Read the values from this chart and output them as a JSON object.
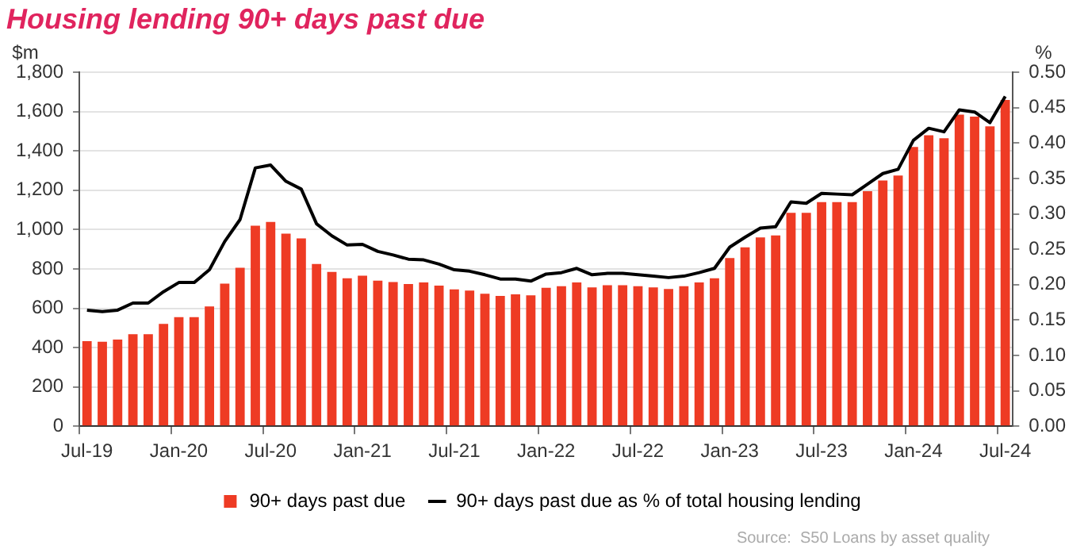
{
  "chart_data": {
    "type": "bar",
    "title": "Housing lending 90+ days past due",
    "ylabel": "$m",
    "y2label": "%",
    "categories": [
      "Jul-19",
      null,
      null,
      null,
      null,
      null,
      "Jan-20",
      null,
      null,
      null,
      null,
      null,
      "Jul-20",
      null,
      null,
      null,
      null,
      null,
      "Jan-21",
      null,
      null,
      null,
      null,
      null,
      "Jul-21",
      null,
      null,
      null,
      null,
      null,
      "Jan-22",
      null,
      null,
      null,
      null,
      null,
      "Jul-22",
      null,
      null,
      null,
      null,
      null,
      "Jan-23",
      null,
      null,
      null,
      null,
      null,
      "Jul-23",
      null,
      null,
      null,
      null,
      null,
      "Jan-24",
      null,
      null,
      null,
      null,
      null,
      "Jul-24"
    ],
    "series": [
      {
        "name": "90+ days past due",
        "color": "#ee3b24",
        "values": [
          433,
          430,
          441,
          468,
          468,
          520,
          555,
          555,
          609,
          725,
          806,
          1020,
          1039,
          980,
          955,
          825,
          785,
          752,
          766,
          740,
          733,
          723,
          731,
          715,
          696,
          690,
          674,
          663,
          671,
          666,
          704,
          712,
          731,
          706,
          717,
          717,
          712,
          706,
          698,
          712,
          731,
          752,
          855,
          910,
          960,
          970,
          1085,
          1085,
          1140,
          1140,
          1140,
          1195,
          1250,
          1275,
          1420,
          1480,
          1465,
          1585,
          1575,
          1525,
          1660
        ]
      },
      {
        "name": "90+ days past due as % of total housing lending",
        "type": "line",
        "axis": "y2",
        "color": "#000000",
        "values": [
          0.164,
          0.162,
          0.164,
          0.174,
          0.174,
          0.19,
          0.203,
          0.203,
          0.221,
          0.261,
          0.292,
          0.365,
          0.369,
          0.346,
          0.335,
          0.286,
          0.269,
          0.256,
          0.257,
          0.247,
          0.242,
          0.236,
          0.235,
          0.229,
          0.221,
          0.219,
          0.214,
          0.208,
          0.208,
          0.205,
          0.215,
          0.217,
          0.223,
          0.214,
          0.216,
          0.216,
          0.214,
          0.212,
          0.21,
          0.212,
          0.217,
          0.223,
          0.253,
          0.267,
          0.28,
          0.282,
          0.317,
          0.315,
          0.329,
          0.328,
          0.327,
          0.342,
          0.357,
          0.363,
          0.404,
          0.421,
          0.416,
          0.447,
          0.444,
          0.429,
          0.466
        ]
      }
    ],
    "ylim": [
      0,
      1800
    ],
    "yticks": [
      {
        "value": 0,
        "label": "0"
      },
      {
        "value": 200,
        "label": "200"
      },
      {
        "value": 400,
        "label": "400"
      },
      {
        "value": 600,
        "label": "600"
      },
      {
        "value": 800,
        "label": "800"
      },
      {
        "value": 1000,
        "label": "1,000"
      },
      {
        "value": 1200,
        "label": "1,200"
      },
      {
        "value": 1400,
        "label": "1,400"
      },
      {
        "value": 1600,
        "label": "1,600"
      },
      {
        "value": 1800,
        "label": "1,800"
      }
    ],
    "y2lim": [
      0,
      0.5
    ],
    "y2ticks": [
      {
        "value": 0,
        "label": "0.00"
      },
      {
        "value": 0.05,
        "label": "0.05"
      },
      {
        "value": 0.1,
        "label": "0.10"
      },
      {
        "value": 0.15,
        "label": "0.15"
      },
      {
        "value": 0.2,
        "label": "0.20"
      },
      {
        "value": 0.25,
        "label": "0.25"
      },
      {
        "value": 0.3,
        "label": "0.30"
      },
      {
        "value": 0.35,
        "label": "0.35"
      },
      {
        "value": 0.4,
        "label": "0.40"
      },
      {
        "value": 0.45,
        "label": "0.45"
      },
      {
        "value": 0.5,
        "label": "0.50"
      }
    ],
    "grid": "y",
    "legend": "bottom",
    "marker": "none",
    "line_style": "solid",
    "annotations": [
      "Source:  S50 Loans by asset quality"
    ]
  }
}
